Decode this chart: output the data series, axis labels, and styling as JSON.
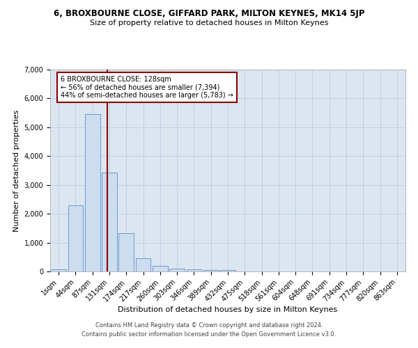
{
  "title": "6, BROXBOURNE CLOSE, GIFFARD PARK, MILTON KEYNES, MK14 5JP",
  "subtitle": "Size of property relative to detached houses in Milton Keynes",
  "xlabel": "Distribution of detached houses by size in Milton Keynes",
  "ylabel": "Number of detached properties",
  "footer1": "Contains HM Land Registry data © Crown copyright and database right 2024.",
  "footer2": "Contains public sector information licensed under the Open Government Licence v3.0.",
  "bin_labels": [
    "1sqm",
    "44sqm",
    "87sqm",
    "131sqm",
    "174sqm",
    "217sqm",
    "260sqm",
    "303sqm",
    "346sqm",
    "389sqm",
    "432sqm",
    "475sqm",
    "518sqm",
    "561sqm",
    "604sqm",
    "648sqm",
    "691sqm",
    "734sqm",
    "777sqm",
    "820sqm",
    "863sqm"
  ],
  "bar_values": [
    70,
    2300,
    5450,
    3430,
    1330,
    460,
    195,
    100,
    70,
    55,
    50,
    0,
    0,
    0,
    0,
    0,
    0,
    0,
    0,
    0,
    0
  ],
  "bar_color": "#ccddf0",
  "bar_edge_color": "#5b8cc8",
  "grid_color": "#b8cce4",
  "bg_color": "#dce6f1",
  "vline_color": "#8b0000",
  "annotation_text": "6 BROXBOURNE CLOSE: 128sqm\n← 56% of detached houses are smaller (7,394)\n44% of semi-detached houses are larger (5,783) →",
  "annotation_box_color": "#ffffff",
  "annotation_box_edge": "#8b0000",
  "ylim": [
    0,
    7000
  ],
  "yticks": [
    0,
    1000,
    2000,
    3000,
    4000,
    5000,
    6000,
    7000
  ],
  "title_fontsize": 8.5,
  "subtitle_fontsize": 8,
  "axis_label_fontsize": 8,
  "tick_fontsize": 7,
  "footer_fontsize": 6
}
